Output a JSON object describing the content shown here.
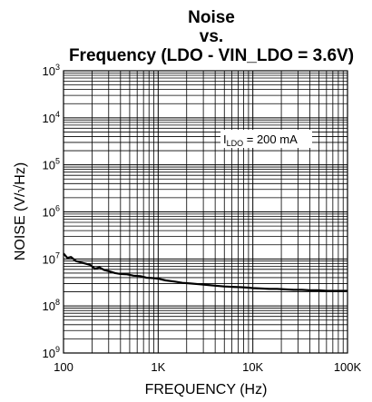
{
  "chart_data": {
    "type": "line",
    "title": "Noise",
    "title_line2": "vs.",
    "title_line3": "Frequency (LDO - VIN_LDO = 3.6V)",
    "xlabel": "FREQUENCY (Hz)",
    "ylabel": "NOISE (V/√Hz)",
    "x_scale": "log",
    "y_scale": "log",
    "xlim": [
      100,
      100000
    ],
    "ylim": [
      1e-09,
      0.001
    ],
    "grid": true,
    "x_ticks": [
      {
        "value": 100,
        "label": "100"
      },
      {
        "value": 1000,
        "label": "1K"
      },
      {
        "value": 10000,
        "label": "10K"
      },
      {
        "value": 100000,
        "label": "100K"
      }
    ],
    "y_ticks": [
      {
        "value": 0.001,
        "base": "10",
        "exp": "3"
      },
      {
        "value": 0.0001,
        "base": "10",
        "exp": "4"
      },
      {
        "value": 1e-05,
        "base": "10",
        "exp": "5"
      },
      {
        "value": 1e-06,
        "base": "10",
        "exp": "6"
      },
      {
        "value": 1e-07,
        "base": "10",
        "exp": "7"
      },
      {
        "value": 1e-08,
        "base": "10",
        "exp": "8"
      },
      {
        "value": 1e-09,
        "base": "10",
        "exp": "9"
      }
    ],
    "annotation": {
      "prefix": "I",
      "sub": "LDO",
      "suffix": " = 200 mA"
    },
    "series": [
      {
        "color": "#000000",
        "x": [
          100,
          110,
          120,
          135,
          150,
          170,
          190,
          215,
          240,
          270,
          300,
          350,
          400,
          470,
          550,
          650,
          750,
          900,
          1000,
          1200,
          1500,
          1800,
          2200,
          2700,
          3300,
          4000,
          5000,
          6000,
          7500,
          9000,
          10000,
          12000,
          15000,
          18000,
          22000,
          27000,
          33000,
          40000,
          50000,
          60000,
          75000,
          90000,
          100000
        ],
        "y": [
          1.3e-07,
          1.05e-07,
          1.1e-07,
          9e-08,
          8.5e-08,
          8e-08,
          7.5e-08,
          6.2e-08,
          6.6e-08,
          5.8e-08,
          5.5e-08,
          5e-08,
          4.8e-08,
          4.7e-08,
          4.4e-08,
          4.3e-08,
          4e-08,
          3.9e-08,
          3.8e-08,
          3.5e-08,
          3.3e-08,
          3.1e-08,
          3e-08,
          2.9e-08,
          2.8e-08,
          2.7e-08,
          2.6e-08,
          2.55e-08,
          2.5e-08,
          2.45e-08,
          2.4e-08,
          2.35e-08,
          2.3e-08,
          2.3e-08,
          2.25e-08,
          2.2e-08,
          2.2e-08,
          2.15e-08,
          2.15e-08,
          2.1e-08,
          2.1e-08,
          2.1e-08,
          2.1e-08
        ]
      }
    ]
  }
}
